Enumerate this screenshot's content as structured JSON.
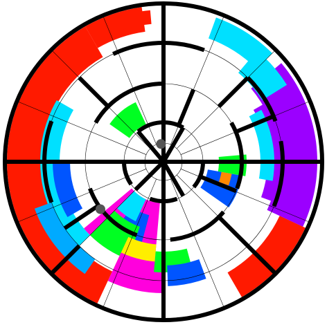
{
  "game": {
    "type": "circular-maze",
    "rings": 5,
    "sectors": 16
  },
  "colors": {
    "wall": "#000000",
    "grid": "#000000",
    "background": "#ffffff",
    "red": "#ff1a00",
    "purple": "#9b00ff",
    "cyan": "#00e0ff",
    "blue": "#0055ff",
    "green": "#00ff22",
    "magenta": "#ff00dd",
    "yellow": "#ffee00",
    "orange": "#ff8800",
    "skyblue": "#00aaff",
    "token": "#555555"
  },
  "tokens": [
    {
      "name": "player-token",
      "color": "#555555"
    },
    {
      "name": "goal-token",
      "color": "#555555"
    }
  ]
}
